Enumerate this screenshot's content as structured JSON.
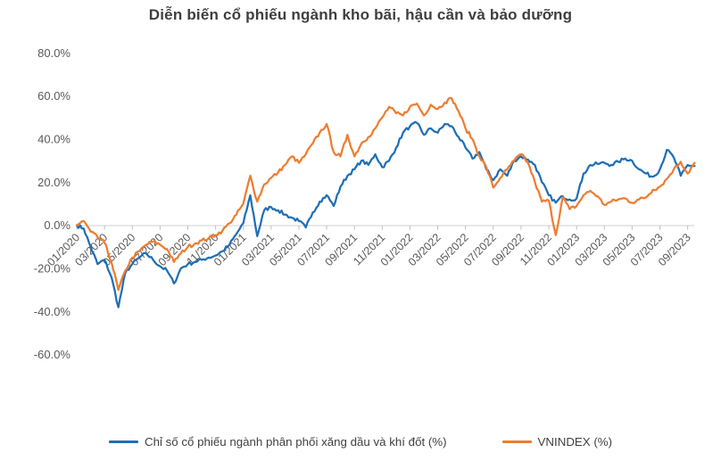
{
  "title": "Diễn biến cổ phiếu ngành kho bãi, hậu cần và bảo dưỡng",
  "colors": {
    "series_gas_index": "#1F6FB5",
    "series_vnindex": "#ED7D31",
    "title_text": "#3E3E3E",
    "axis_text": "#595959",
    "axis_line": "#D9D9D9"
  },
  "chart_data": {
    "type": "line",
    "title": "Diễn biến cổ phiếu ngành kho bãi, hậu cần và bảo dưỡng",
    "grid": "horizontal axis line at 0% only, no other gridlines",
    "legend_position": "bottom",
    "ylim": [
      -60,
      80
    ],
    "y_tick_values": [
      80,
      60,
      40,
      20,
      0,
      -20,
      -40,
      -60
    ],
    "y_tick_labels": [
      "80.0%",
      "60.0%",
      "40.0%",
      "20.0%",
      "0.0%",
      "-20.0%",
      "-40.0%",
      "-60.0%"
    ],
    "x_tick_labels": [
      "01/2020",
      "03/2020",
      "05/2020",
      "07/2020",
      "09/2020",
      "11/2020",
      "01/2021",
      "03/2021",
      "05/2021",
      "07/2021",
      "09/2021",
      "11/2021",
      "01/2022",
      "03/2022",
      "05/2022",
      "07/2022",
      "09/2022",
      "11/2022",
      "01/2023",
      "03/2023",
      "05/2023",
      "07/2023",
      "09/2023"
    ],
    "x_start_label": "01/2020",
    "x_end_label": "09/2023",
    "sampling": "semi-monthly percent change since 01/2020",
    "series": [
      {
        "name": "Chỉ số cổ phiếu ngành phân phối xăng dầu và khí đốt (%)",
        "color": "#1F6FB5",
        "values": [
          0,
          -1.5,
          -10,
          -18,
          -16,
          -24,
          -38,
          -22,
          -18,
          -15,
          -13,
          -16,
          -19,
          -21,
          -27,
          -20,
          -18,
          -17,
          -16,
          -15,
          -14,
          -12,
          -9,
          -4,
          1,
          14,
          -5,
          7,
          8.5,
          7,
          5,
          3.5,
          2,
          -1,
          6,
          11,
          14,
          9,
          18,
          23,
          26,
          30,
          28,
          33,
          27,
          30,
          36,
          43,
          46,
          47.5,
          42,
          45,
          43,
          47,
          46,
          41,
          36,
          31,
          34,
          26,
          21,
          26,
          23,
          30,
          32,
          30.5,
          28,
          20,
          14,
          10.5,
          13.5,
          12,
          12.5,
          24,
          28,
          28.5,
          29,
          28,
          29.5,
          31,
          30,
          26,
          24,
          22.5,
          26,
          35,
          31.5,
          23,
          28,
          27.5
        ]
      },
      {
        "name": "VNINDEX (%)",
        "color": "#ED7D31",
        "values": [
          0,
          2,
          -3,
          -5.5,
          -8,
          -17,
          -30,
          -21,
          -15,
          -12,
          -9,
          -7.5,
          -9,
          -11,
          -17,
          -13,
          -10,
          -8.5,
          -7,
          -6,
          -4.5,
          -2.5,
          1,
          5,
          10,
          23,
          11,
          19,
          22,
          24.5,
          28,
          32,
          29,
          33,
          38,
          43,
          47,
          34,
          32,
          42,
          32,
          38,
          41,
          45,
          50,
          55,
          52,
          51,
          55,
          56.5,
          51,
          56,
          54,
          57,
          59,
          53,
          45,
          40,
          32,
          27,
          17.5,
          22,
          26,
          30,
          33,
          29,
          20,
          11,
          11.5,
          -4.5,
          13,
          7.5,
          9,
          14,
          16,
          13.5,
          9.5,
          11,
          12,
          12.5,
          10.5,
          12,
          13,
          16.5,
          18,
          21.5,
          26,
          29.5,
          24,
          29
        ]
      }
    ]
  },
  "legend": {
    "items": [
      {
        "label": "Chỉ số cổ phiếu ngành phân phối xăng dầu và khí đốt (%)",
        "color": "#1F6FB5"
      },
      {
        "label": "VNINDEX (%)",
        "color": "#ED7D31"
      }
    ]
  }
}
